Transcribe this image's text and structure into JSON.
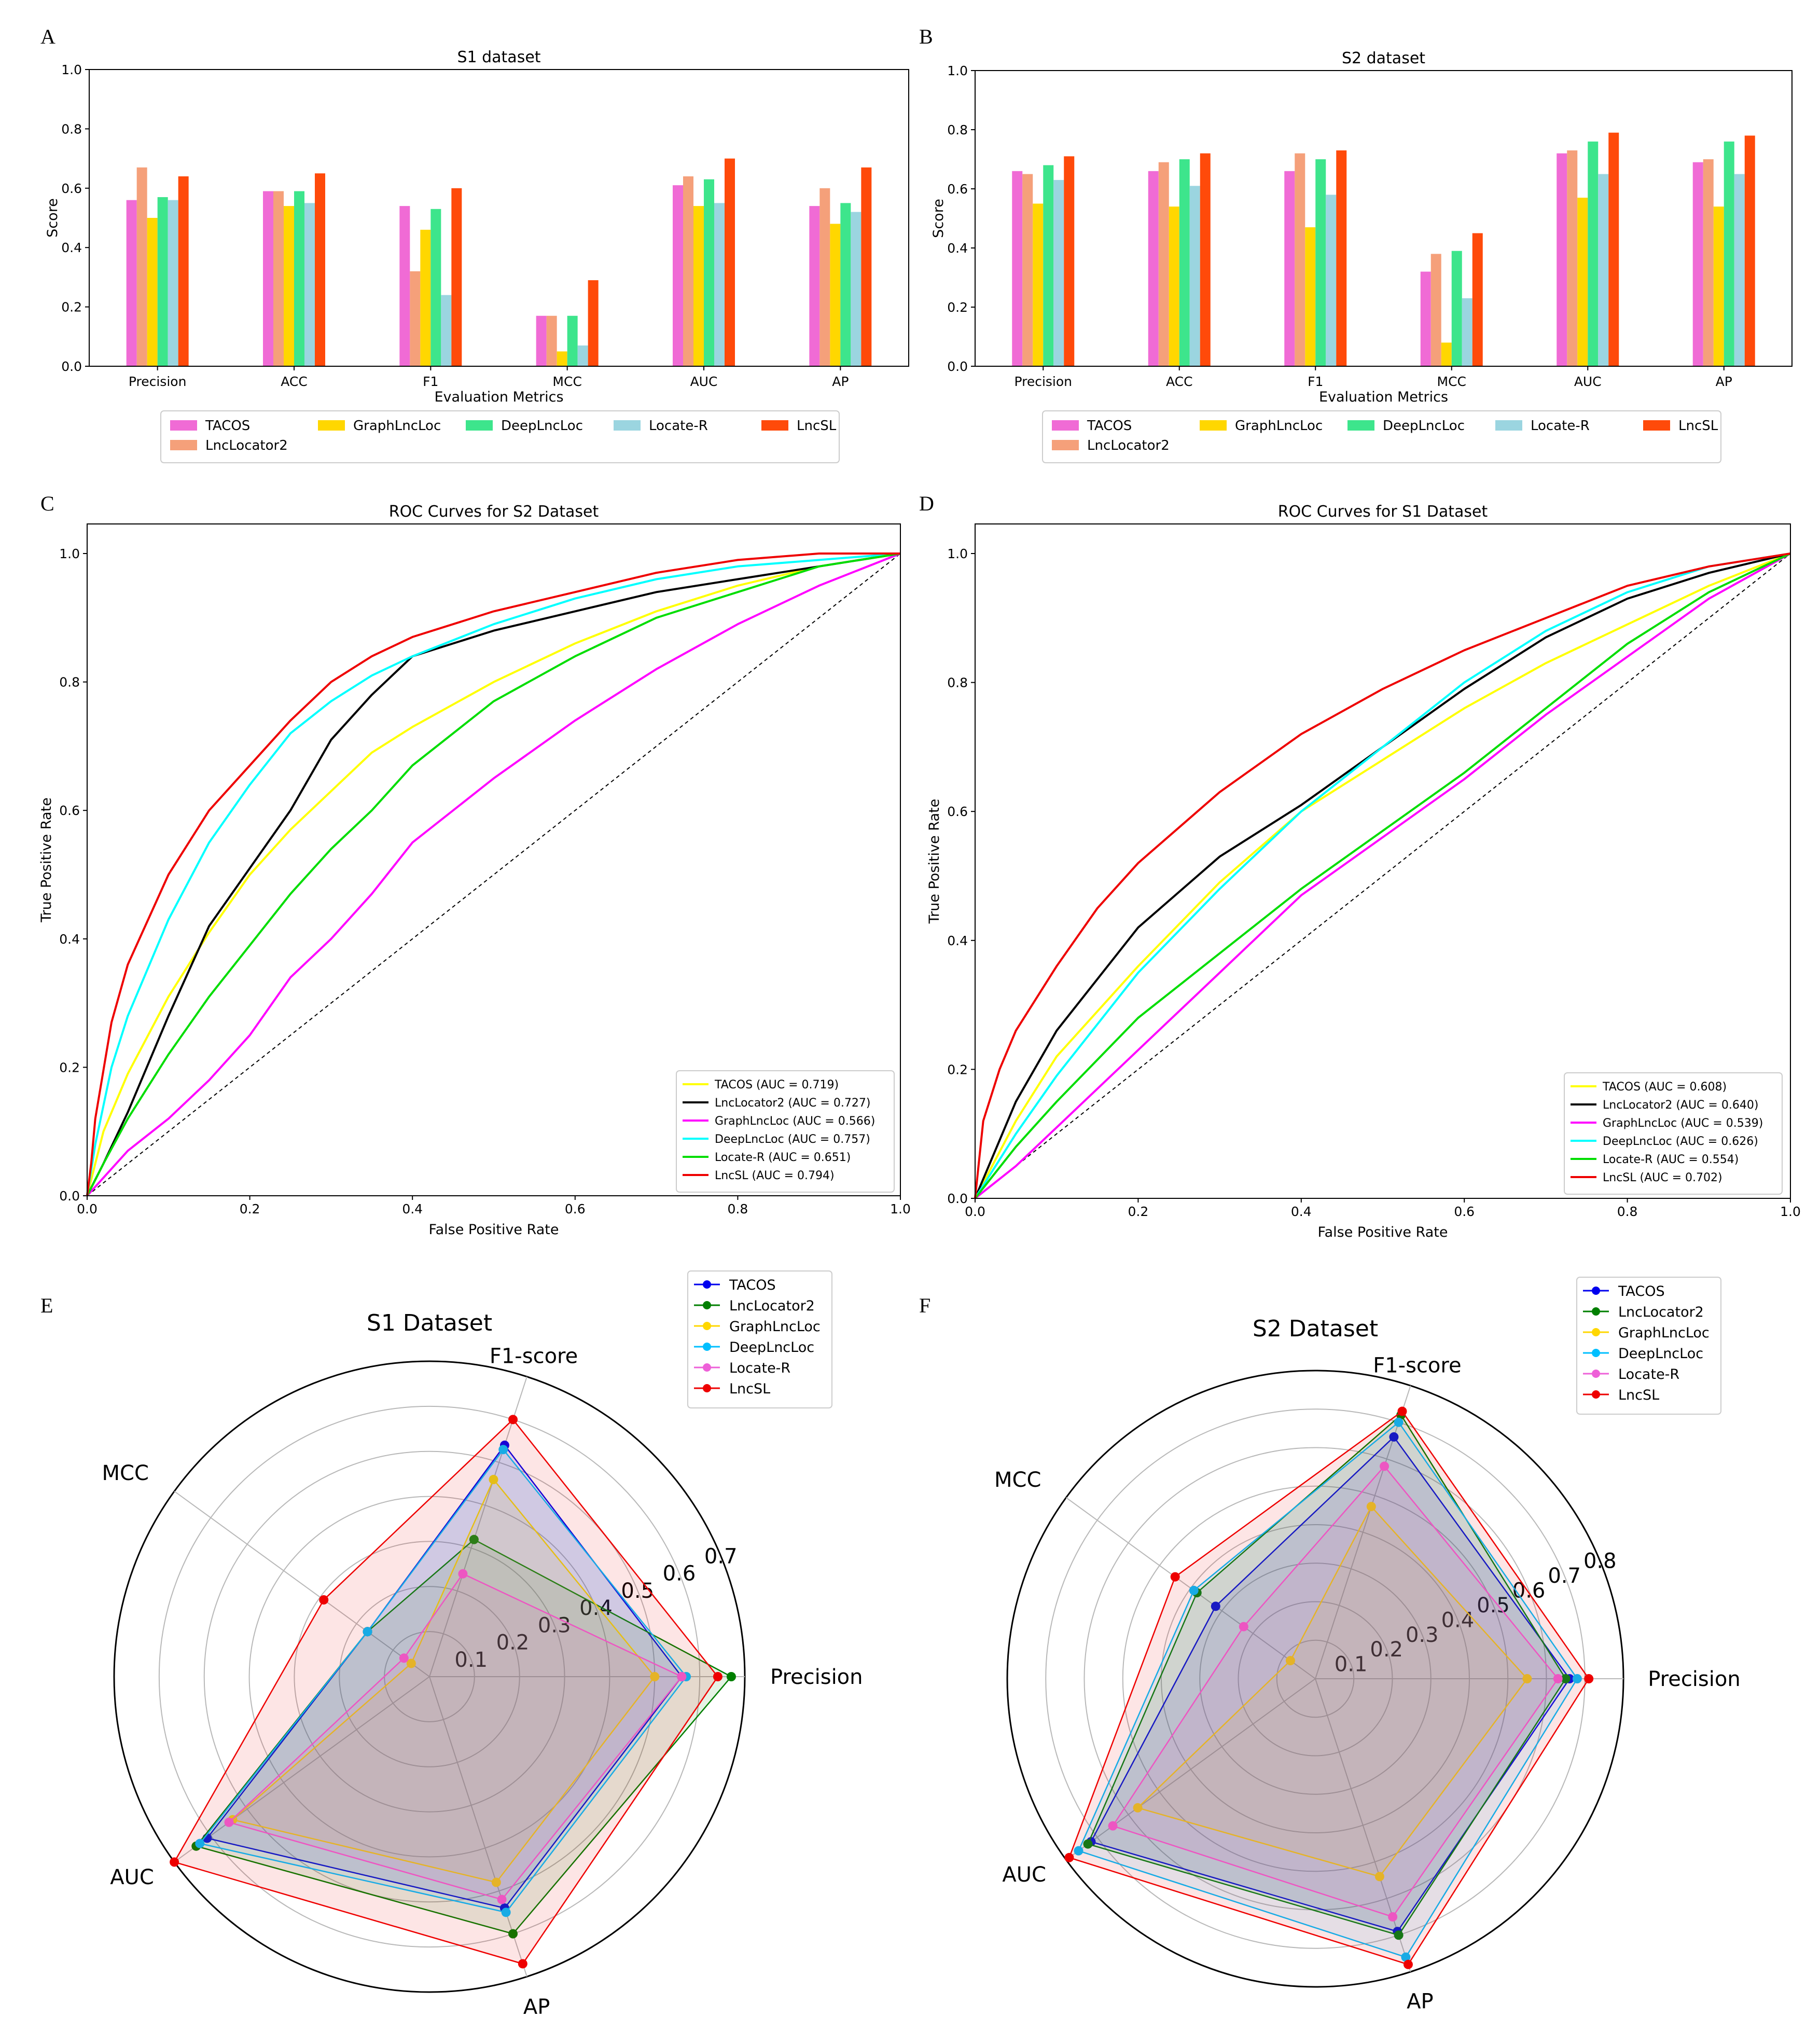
{
  "panel_labels": [
    "A",
    "B",
    "C",
    "D",
    "E",
    "F"
  ],
  "models": [
    "TACOS",
    "LncLocator2",
    "GraphLncLoc",
    "DeepLncLoc",
    "Locate-R",
    "LncSL"
  ],
  "colors": {
    "bar": [
      "#F06BD5",
      "#F5A07A",
      "#FFD700",
      "#3DE58C",
      "#9BD5E0",
      "#FF4A0A"
    ],
    "roc": [
      "#FFFF00",
      "#000000",
      "#FF00FF",
      "#00FFFF",
      "#00DD00",
      "#EE0000"
    ],
    "radar": [
      "#0000EE",
      "#007F00",
      "#FFD700",
      "#00BFFF",
      "#EE60D8",
      "#EE0000"
    ]
  },
  "chart_data": [
    {
      "id": "A",
      "type": "bar",
      "title": "S1 dataset",
      "xlabel": "Evaluation Metrics",
      "ylabel": "Score",
      "ylim": [
        0,
        1.0
      ],
      "yticks": [
        "0.0",
        "0.2",
        "0.4",
        "0.6",
        "0.8",
        "1.0"
      ],
      "categories": [
        "Precision",
        "ACC",
        "F1",
        "MCC",
        "AUC",
        "AP"
      ],
      "series": [
        {
          "name": "TACOS",
          "values": [
            0.56,
            0.59,
            0.54,
            0.17,
            0.61,
            0.54
          ]
        },
        {
          "name": "LncLocator2",
          "values": [
            0.67,
            0.59,
            0.32,
            0.17,
            0.64,
            0.6
          ]
        },
        {
          "name": "GraphLncLoc",
          "values": [
            0.5,
            0.54,
            0.46,
            0.05,
            0.54,
            0.48
          ]
        },
        {
          "name": "DeepLncLoc",
          "values": [
            0.57,
            0.59,
            0.53,
            0.17,
            0.63,
            0.55
          ]
        },
        {
          "name": "Locate-R",
          "values": [
            0.56,
            0.55,
            0.24,
            0.07,
            0.55,
            0.52
          ]
        },
        {
          "name": "LncSL",
          "values": [
            0.64,
            0.65,
            0.6,
            0.29,
            0.7,
            0.67
          ]
        }
      ]
    },
    {
      "id": "B",
      "type": "bar",
      "title": "S2 dataset",
      "xlabel": "Evaluation Metrics",
      "ylabel": "Score",
      "ylim": [
        0,
        1.0
      ],
      "yticks": [
        "0.0",
        "0.2",
        "0.4",
        "0.6",
        "0.8",
        "1.0"
      ],
      "categories": [
        "Precision",
        "ACC",
        "F1",
        "MCC",
        "AUC",
        "AP"
      ],
      "series": [
        {
          "name": "TACOS",
          "values": [
            0.66,
            0.66,
            0.66,
            0.32,
            0.72,
            0.69
          ]
        },
        {
          "name": "LncLocator2",
          "values": [
            0.65,
            0.69,
            0.72,
            0.38,
            0.73,
            0.7
          ]
        },
        {
          "name": "GraphLncLoc",
          "values": [
            0.55,
            0.54,
            0.47,
            0.08,
            0.57,
            0.54
          ]
        },
        {
          "name": "DeepLncLoc",
          "values": [
            0.68,
            0.7,
            0.7,
            0.39,
            0.76,
            0.76
          ]
        },
        {
          "name": "Locate-R",
          "values": [
            0.63,
            0.61,
            0.58,
            0.23,
            0.65,
            0.65
          ]
        },
        {
          "name": "LncSL",
          "values": [
            0.71,
            0.72,
            0.73,
            0.45,
            0.79,
            0.78
          ]
        }
      ]
    },
    {
      "id": "C",
      "type": "line",
      "title": "ROC Curves for S2 Dataset",
      "xlabel": "False Positive Rate",
      "ylabel": "True Positive Rate",
      "xlim": [
        0,
        1.0
      ],
      "ylim": [
        0,
        1.0
      ],
      "ticks": [
        "0.0",
        "0.2",
        "0.4",
        "0.6",
        "0.8",
        "1.0"
      ],
      "legend": [
        "TACOS (AUC = 0.719)",
        "LncLocator2 (AUC = 0.727)",
        "GraphLncLoc (AUC = 0.566)",
        "DeepLncLoc (AUC = 0.757)",
        "Locate-R (AUC = 0.651)",
        "LncSL (AUC = 0.794)"
      ],
      "series": [
        {
          "name": "TACOS",
          "x": [
            0,
            0.02,
            0.05,
            0.1,
            0.15,
            0.2,
            0.25,
            0.3,
            0.35,
            0.4,
            0.5,
            0.6,
            0.7,
            0.8,
            0.9,
            1.0
          ],
          "y": [
            0,
            0.1,
            0.19,
            0.31,
            0.41,
            0.5,
            0.57,
            0.63,
            0.69,
            0.73,
            0.8,
            0.86,
            0.91,
            0.95,
            0.98,
            1.0
          ]
        },
        {
          "name": "LncLocator2",
          "x": [
            0,
            0.02,
            0.05,
            0.1,
            0.15,
            0.2,
            0.25,
            0.3,
            0.35,
            0.4,
            0.5,
            0.6,
            0.7,
            0.8,
            0.9,
            1.0
          ],
          "y": [
            0,
            0.05,
            0.13,
            0.28,
            0.42,
            0.51,
            0.6,
            0.71,
            0.78,
            0.84,
            0.88,
            0.91,
            0.94,
            0.96,
            0.98,
            1.0
          ]
        },
        {
          "name": "GraphLncLoc",
          "x": [
            0,
            0.05,
            0.1,
            0.15,
            0.2,
            0.25,
            0.3,
            0.35,
            0.4,
            0.5,
            0.6,
            0.7,
            0.8,
            0.9,
            1.0
          ],
          "y": [
            0,
            0.07,
            0.12,
            0.18,
            0.25,
            0.34,
            0.4,
            0.47,
            0.55,
            0.65,
            0.74,
            0.82,
            0.89,
            0.95,
            1.0
          ]
        },
        {
          "name": "DeepLncLoc",
          "x": [
            0,
            0.01,
            0.03,
            0.05,
            0.1,
            0.15,
            0.2,
            0.25,
            0.3,
            0.35,
            0.4,
            0.5,
            0.6,
            0.7,
            0.8,
            0.9,
            1.0
          ],
          "y": [
            0,
            0.08,
            0.2,
            0.28,
            0.43,
            0.55,
            0.64,
            0.72,
            0.77,
            0.81,
            0.84,
            0.89,
            0.93,
            0.96,
            0.98,
            0.99,
            1.0
          ]
        },
        {
          "name": "Locate-R",
          "x": [
            0,
            0.02,
            0.05,
            0.1,
            0.15,
            0.2,
            0.25,
            0.3,
            0.35,
            0.4,
            0.5,
            0.6,
            0.7,
            0.8,
            0.9,
            1.0
          ],
          "y": [
            0,
            0.05,
            0.12,
            0.22,
            0.31,
            0.39,
            0.47,
            0.54,
            0.6,
            0.67,
            0.77,
            0.84,
            0.9,
            0.94,
            0.98,
            1.0
          ]
        },
        {
          "name": "LncSL",
          "x": [
            0,
            0.005,
            0.01,
            0.03,
            0.05,
            0.1,
            0.15,
            0.2,
            0.25,
            0.3,
            0.35,
            0.4,
            0.5,
            0.6,
            0.7,
            0.8,
            0.9,
            1.0
          ],
          "y": [
            0,
            0.05,
            0.12,
            0.27,
            0.36,
            0.5,
            0.6,
            0.67,
            0.74,
            0.8,
            0.84,
            0.87,
            0.91,
            0.94,
            0.97,
            0.99,
            1.0,
            1.0
          ]
        }
      ]
    },
    {
      "id": "D",
      "type": "line",
      "title": "ROC Curves for S1 Dataset",
      "xlabel": "False Positive Rate",
      "ylabel": "True Positive Rate",
      "xlim": [
        0,
        1.0
      ],
      "ylim": [
        0,
        1.0
      ],
      "ticks": [
        "0.0",
        "0.2",
        "0.4",
        "0.6",
        "0.8",
        "1.0"
      ],
      "legend": [
        "TACOS (AUC = 0.608)",
        "LncLocator2 (AUC = 0.640)",
        "GraphLncLoc (AUC = 0.539)",
        "DeepLncLoc (AUC = 0.626)",
        "Locate-R (AUC = 0.554)",
        "LncSL (AUC = 0.702)"
      ],
      "series": [
        {
          "name": "TACOS",
          "x": [
            0,
            0.05,
            0.1,
            0.2,
            0.3,
            0.4,
            0.5,
            0.6,
            0.7,
            0.8,
            0.9,
            1.0
          ],
          "y": [
            0,
            0.12,
            0.22,
            0.36,
            0.49,
            0.6,
            0.68,
            0.76,
            0.83,
            0.89,
            0.95,
            1.0
          ]
        },
        {
          "name": "LncLocator2",
          "x": [
            0,
            0.05,
            0.1,
            0.2,
            0.3,
            0.4,
            0.5,
            0.6,
            0.7,
            0.8,
            0.9,
            1.0
          ],
          "y": [
            0,
            0.15,
            0.26,
            0.42,
            0.53,
            0.61,
            0.7,
            0.79,
            0.87,
            0.93,
            0.97,
            1.0
          ]
        },
        {
          "name": "GraphLncLoc",
          "x": [
            0,
            0.05,
            0.1,
            0.2,
            0.3,
            0.4,
            0.5,
            0.6,
            0.7,
            0.8,
            0.9,
            1.0
          ],
          "y": [
            0,
            0.05,
            0.11,
            0.23,
            0.35,
            0.47,
            0.56,
            0.65,
            0.75,
            0.84,
            0.93,
            1.0
          ]
        },
        {
          "name": "DeepLncLoc",
          "x": [
            0,
            0.05,
            0.1,
            0.2,
            0.3,
            0.4,
            0.5,
            0.6,
            0.7,
            0.8,
            0.9,
            1.0
          ],
          "y": [
            0,
            0.1,
            0.19,
            0.35,
            0.48,
            0.6,
            0.7,
            0.8,
            0.88,
            0.94,
            0.98,
            1.0
          ]
        },
        {
          "name": "Locate-R",
          "x": [
            0,
            0.05,
            0.1,
            0.2,
            0.3,
            0.4,
            0.5,
            0.6,
            0.7,
            0.8,
            0.9,
            1.0
          ],
          "y": [
            0,
            0.08,
            0.15,
            0.28,
            0.38,
            0.48,
            0.57,
            0.66,
            0.76,
            0.86,
            0.94,
            1.0
          ]
        },
        {
          "name": "LncSL",
          "x": [
            0,
            0.01,
            0.03,
            0.05,
            0.1,
            0.15,
            0.2,
            0.3,
            0.4,
            0.5,
            0.6,
            0.7,
            0.8,
            0.9,
            1.0
          ],
          "y": [
            0,
            0.12,
            0.2,
            0.26,
            0.36,
            0.45,
            0.52,
            0.63,
            0.72,
            0.79,
            0.85,
            0.9,
            0.95,
            0.98,
            1.0
          ]
        }
      ]
    },
    {
      "id": "E",
      "type": "radar",
      "title": "S1 Dataset",
      "axes": [
        "Precision",
        "F1-score",
        "MCC",
        "AUC",
        "AP"
      ],
      "rmax": 0.7,
      "rticks": [
        0.1,
        0.2,
        0.3,
        0.4,
        0.5,
        0.6,
        0.7
      ],
      "rtick_labels": [
        "0.1",
        "0.2",
        "0.3",
        "0.4",
        "0.5",
        "0.6",
        "0.7"
      ],
      "series": [
        {
          "name": "TACOS",
          "values": [
            0.56,
            0.54,
            0.17,
            0.61,
            0.54
          ]
        },
        {
          "name": "LncLocator2",
          "values": [
            0.67,
            0.32,
            0.17,
            0.64,
            0.6
          ]
        },
        {
          "name": "GraphLncLoc",
          "values": [
            0.5,
            0.46,
            0.05,
            0.54,
            0.48
          ]
        },
        {
          "name": "DeepLncLoc",
          "values": [
            0.57,
            0.53,
            0.17,
            0.63,
            0.55
          ]
        },
        {
          "name": "Locate-R",
          "values": [
            0.56,
            0.24,
            0.07,
            0.55,
            0.52
          ]
        },
        {
          "name": "LncSL",
          "values": [
            0.64,
            0.6,
            0.29,
            0.7,
            0.67
          ]
        }
      ]
    },
    {
      "id": "F",
      "type": "radar",
      "title": "S2 Dataset",
      "axes": [
        "Precision",
        "F1-score",
        "MCC",
        "AUC",
        "AP"
      ],
      "rmax": 0.8,
      "rticks": [
        0.1,
        0.2,
        0.3,
        0.4,
        0.5,
        0.6,
        0.7,
        0.8
      ],
      "rtick_labels": [
        "0.1",
        "0.2",
        "0.3",
        "0.4",
        "0.5",
        "0.6",
        "0.7",
        "0.8"
      ],
      "series": [
        {
          "name": "TACOS",
          "values": [
            0.66,
            0.66,
            0.32,
            0.72,
            0.69
          ]
        },
        {
          "name": "LncLocator2",
          "values": [
            0.65,
            0.72,
            0.38,
            0.73,
            0.7
          ]
        },
        {
          "name": "GraphLncLoc",
          "values": [
            0.55,
            0.47,
            0.08,
            0.57,
            0.54
          ]
        },
        {
          "name": "DeepLncLoc",
          "values": [
            0.68,
            0.7,
            0.39,
            0.76,
            0.76
          ]
        },
        {
          "name": "Locate-R",
          "values": [
            0.63,
            0.58,
            0.23,
            0.65,
            0.65
          ]
        },
        {
          "name": "LncSL",
          "values": [
            0.71,
            0.73,
            0.45,
            0.79,
            0.78
          ]
        }
      ]
    }
  ]
}
